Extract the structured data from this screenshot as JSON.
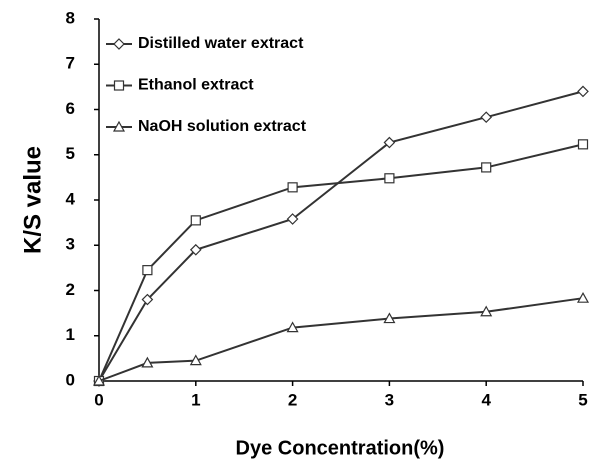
{
  "chart_data": {
    "type": "line",
    "x_label": "Dye Concentration(%)",
    "y_label": "K/S value",
    "x": [
      0,
      0.5,
      1,
      2,
      3,
      4,
      5
    ],
    "series": [
      {
        "name": "Distilled water extract",
        "color": "#333333",
        "marker": "diamond",
        "values": [
          0,
          1.8,
          2.9,
          3.58,
          5.27,
          5.83,
          6.4
        ]
      },
      {
        "name": "Ethanol extract",
        "color": "#333333",
        "marker": "square",
        "values": [
          0,
          2.45,
          3.55,
          4.28,
          4.48,
          4.72,
          5.23
        ]
      },
      {
        "name": "NaOH solution extract",
        "color": "#333333",
        "marker": "triangle",
        "values": [
          0,
          0.4,
          0.45,
          1.18,
          1.38,
          1.53,
          1.83
        ]
      }
    ],
    "xlim": [
      0,
      5
    ],
    "xticks": [
      0,
      1,
      2,
      3,
      4,
      5
    ],
    "ylim": [
      0,
      8
    ],
    "yticks": [
      0,
      1,
      2,
      3,
      4,
      5,
      6,
      7,
      8
    ],
    "legend": "upper left",
    "grid": false
  }
}
